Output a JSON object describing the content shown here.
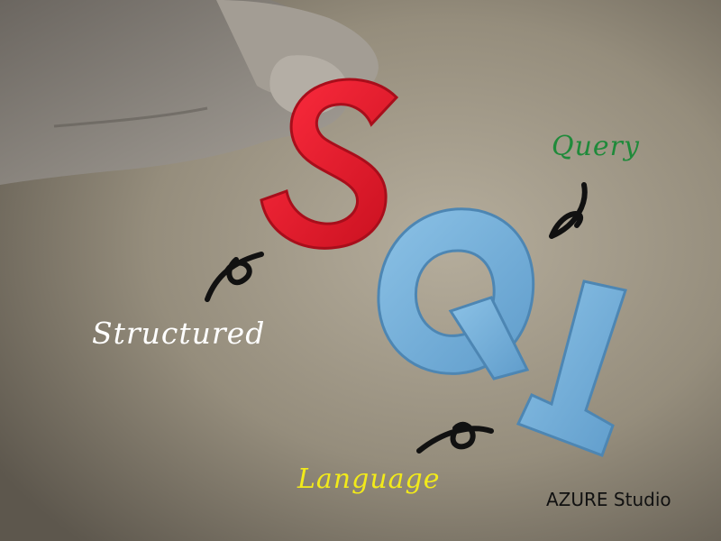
{
  "labels": {
    "query": "Query",
    "structured": "Structured",
    "language": "Language"
  },
  "watermark": "AZURE Studio",
  "colors": {
    "letter_s": "#e8192c",
    "letters_ql": "#73afd9",
    "query_text": "#1f8a3a",
    "structured_text": "#ffffff",
    "language_text": "#f2ea1a",
    "swirl": "#111111"
  }
}
